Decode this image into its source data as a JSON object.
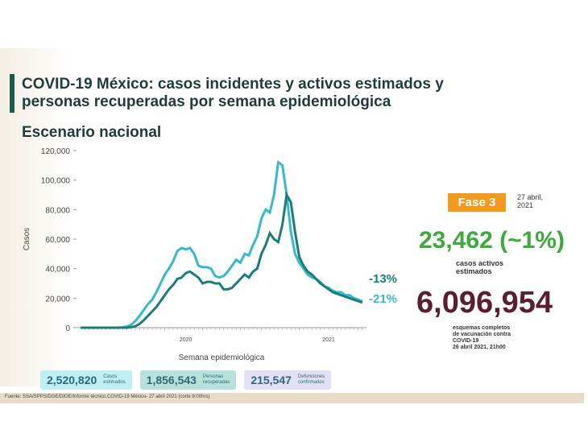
{
  "header": {
    "title_lines": [
      "COVID-19 México: casos incidentes y activos estimados y",
      "personas recuperadas por semana epidemiológica"
    ],
    "subtitle": "Escenario nacional"
  },
  "chart_data": {
    "type": "line",
    "ylabel": "Casos",
    "xlabel": "Semana epidemiológica",
    "x": [
      1,
      2,
      3,
      4,
      5,
      6,
      7,
      8,
      9,
      10,
      11,
      12,
      13,
      14,
      15,
      16,
      17,
      18,
      19,
      20,
      21,
      22,
      23,
      24,
      25,
      26,
      27,
      28,
      29,
      30,
      31,
      32,
      33,
      34,
      35,
      36,
      37,
      38,
      39,
      40,
      41,
      42,
      43,
      44,
      45,
      46,
      47,
      48,
      49,
      50,
      51,
      52,
      53,
      54,
      55,
      56,
      57,
      58,
      59,
      60,
      61,
      62,
      63,
      64,
      65,
      66,
      67,
      68
    ],
    "xlim": [
      0,
      69
    ],
    "xticks": [
      {
        "value": 26,
        "label": "2020"
      },
      {
        "value": 60,
        "label": "2021"
      }
    ],
    "ylim": [
      0,
      120000
    ],
    "yticks": [
      0,
      {
        "value": 20000,
        "label": "20,000"
      },
      {
        "value": 40000,
        "label": "40,000"
      },
      {
        "value": 60000,
        "label": "60,000"
      },
      {
        "value": 80000,
        "label": "80,000"
      },
      {
        "value": 100000,
        "label": "100,000"
      },
      {
        "value": 120000,
        "label": "120,000"
      }
    ],
    "series": [
      {
        "color": "#35b9cc",
        "values": [
          0,
          0,
          0,
          0,
          0,
          0,
          0,
          0,
          0,
          0,
          200,
          800,
          2000,
          4500,
          8000,
          12000,
          16000,
          19000,
          24000,
          30000,
          36000,
          40000,
          45000,
          52000,
          54000,
          53000,
          54000,
          50000,
          42000,
          41000,
          41000,
          40000,
          35000,
          34000,
          35000,
          38000,
          42000,
          46000,
          44000,
          50000,
          49000,
          56000,
          62000,
          74000,
          80000,
          78000,
          90000,
          112000,
          110000,
          90000,
          65000,
          50000,
          44000,
          40000,
          36000,
          34000,
          33000,
          31000,
          28000,
          27000,
          25000,
          24000,
          24000,
          22000,
          22000,
          20000,
          19000,
          18000
        ]
      },
      {
        "color": "#1a7d78",
        "values": [
          0,
          0,
          0,
          0,
          0,
          0,
          0,
          0,
          0,
          0,
          0,
          0,
          300,
          1000,
          2500,
          5000,
          8000,
          11000,
          14000,
          18000,
          22000,
          26000,
          29000,
          33000,
          34000,
          37000,
          38000,
          36000,
          34000,
          30000,
          31000,
          31000,
          30000,
          30000,
          26000,
          26000,
          27000,
          30000,
          33000,
          36000,
          34000,
          38000,
          40000,
          50000,
          56000,
          64000,
          60000,
          58000,
          70000,
          90000,
          85000,
          65000,
          48000,
          42000,
          38000,
          36000,
          33000,
          30000,
          28000,
          26000,
          24000,
          23000,
          22000,
          21000,
          20000,
          19000,
          18000,
          17000
        ]
      }
    ],
    "annotations": [
      {
        "text": "-13%",
        "color": "#1a7d78"
      },
      {
        "text": "-21%",
        "color": "#35b9cc"
      }
    ]
  },
  "totals": [
    {
      "value": "2,520,820",
      "label_lines": [
        "Casos",
        "estimados"
      ],
      "color": "#bfeef3"
    },
    {
      "value": "1,856,543",
      "label_lines": [
        "Personas",
        "recuperadas"
      ],
      "color": "#b9e1dc"
    },
    {
      "value": "215,547",
      "label_lines": [
        "Defunciones",
        "confirmados"
      ],
      "color": "#e3e0f5"
    }
  ],
  "side": {
    "phase": "Fase 3",
    "date_lines": [
      "27 abril,",
      "2021"
    ],
    "active": "23,462 (~1%)",
    "active_note_lines": [
      "casos activos",
      "estimados"
    ],
    "vaccinated": "6,096,954",
    "vaccine_note_lines": [
      "esquemas completos",
      "de vacunación contra",
      "COVID-19",
      "26 abril 2021, 21h00"
    ]
  },
  "footer": {
    "source": "Fuente: SSA/SPPS/DGE/DIOE/Informe técnico.COVID-19 México- 27 abril 2021 (corte 9:00hrs)"
  }
}
